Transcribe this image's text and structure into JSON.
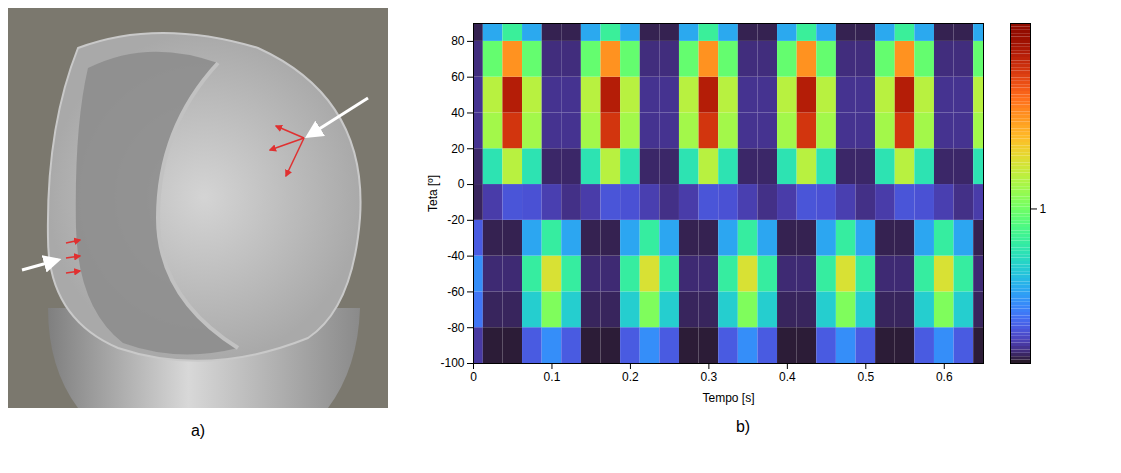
{
  "photo": {
    "label": "a)"
  },
  "chart_data": {
    "type": "heatmap",
    "panel_label": "b)",
    "x_label": "Tempo [s]",
    "y_label": "Teta [º]",
    "x": [
      0,
      0.025,
      0.05,
      0.075,
      0.1,
      0.125,
      0.15,
      0.175,
      0.2,
      0.225,
      0.25,
      0.275,
      0.3,
      0.325,
      0.35,
      0.375,
      0.4,
      0.425,
      0.45,
      0.475,
      0.5,
      0.525,
      0.55,
      0.575,
      0.6,
      0.625,
      0.65
    ],
    "y": [
      -90,
      -70,
      -50,
      -30,
      -10,
      10,
      30,
      50,
      70,
      90
    ],
    "values": [
      [
        0.12,
        0.31,
        0.39,
        0.23,
        0.05,
        0.06,
        0.1,
        0.1,
        0.08,
        0.04
      ],
      [
        0.02,
        0.05,
        0.07,
        0.04,
        0.13,
        0.72,
        1.14,
        1.2,
        0.96,
        0.48
      ],
      [
        0.02,
        0.05,
        0.07,
        0.04,
        0.21,
        1.2,
        1.9,
        2.0,
        1.6,
        0.8
      ],
      [
        0.23,
        0.62,
        0.78,
        0.47,
        0.2,
        0.72,
        1.14,
        1.2,
        0.96,
        0.48
      ],
      [
        0.39,
        1.04,
        1.3,
        0.78,
        0.14,
        0.06,
        0.1,
        0.1,
        0.08,
        0.04
      ],
      [
        0.23,
        0.62,
        0.78,
        0.47,
        0.09,
        0.06,
        0.1,
        0.1,
        0.08,
        0.04
      ],
      [
        0.02,
        0.05,
        0.07,
        0.04,
        0.13,
        0.72,
        1.14,
        1.2,
        0.96,
        0.48
      ],
      [
        0.02,
        0.05,
        0.07,
        0.04,
        0.21,
        1.2,
        1.9,
        2.0,
        1.6,
        0.8
      ],
      [
        0.23,
        0.62,
        0.78,
        0.47,
        0.2,
        0.72,
        1.14,
        1.2,
        0.96,
        0.48
      ],
      [
        0.39,
        1.04,
        1.3,
        0.78,
        0.14,
        0.06,
        0.1,
        0.1,
        0.08,
        0.04
      ],
      [
        0.23,
        0.62,
        0.78,
        0.47,
        0.09,
        0.06,
        0.1,
        0.1,
        0.08,
        0.04
      ],
      [
        0.02,
        0.05,
        0.07,
        0.04,
        0.13,
        0.72,
        1.14,
        1.2,
        0.96,
        0.48
      ],
      [
        0.02,
        0.05,
        0.07,
        0.04,
        0.21,
        1.2,
        1.9,
        2.0,
        1.6,
        0.8
      ],
      [
        0.23,
        0.62,
        0.78,
        0.47,
        0.2,
        0.72,
        1.14,
        1.2,
        0.96,
        0.48
      ],
      [
        0.39,
        1.04,
        1.3,
        0.78,
        0.14,
        0.06,
        0.1,
        0.1,
        0.08,
        0.04
      ],
      [
        0.23,
        0.62,
        0.78,
        0.47,
        0.09,
        0.06,
        0.1,
        0.1,
        0.08,
        0.04
      ],
      [
        0.02,
        0.05,
        0.07,
        0.04,
        0.13,
        0.72,
        1.14,
        1.2,
        0.96,
        0.48
      ],
      [
        0.02,
        0.05,
        0.07,
        0.04,
        0.21,
        1.2,
        1.9,
        2.0,
        1.6,
        0.8
      ],
      [
        0.23,
        0.62,
        0.78,
        0.47,
        0.2,
        0.72,
        1.14,
        1.2,
        0.96,
        0.48
      ],
      [
        0.39,
        1.04,
        1.3,
        0.78,
        0.14,
        0.06,
        0.1,
        0.1,
        0.08,
        0.04
      ],
      [
        0.23,
        0.62,
        0.78,
        0.47,
        0.09,
        0.06,
        0.1,
        0.1,
        0.08,
        0.04
      ],
      [
        0.02,
        0.05,
        0.07,
        0.04,
        0.13,
        0.72,
        1.14,
        1.2,
        0.96,
        0.48
      ],
      [
        0.02,
        0.05,
        0.07,
        0.04,
        0.21,
        1.2,
        1.9,
        2.0,
        1.6,
        0.8
      ],
      [
        0.23,
        0.62,
        0.78,
        0.47,
        0.2,
        0.72,
        1.14,
        1.2,
        0.96,
        0.48
      ],
      [
        0.39,
        1.04,
        1.3,
        0.78,
        0.14,
        0.06,
        0.1,
        0.1,
        0.08,
        0.04
      ],
      [
        0.23,
        0.62,
        0.78,
        0.47,
        0.09,
        0.06,
        0.1,
        0.1,
        0.08,
        0.04
      ],
      [
        0.02,
        0.05,
        0.07,
        0.04,
        0.13,
        0.72,
        1.14,
        1.2,
        0.96,
        0.48
      ]
    ],
    "xlim": [
      0,
      0.65
    ],
    "xticks": [
      0,
      0.1,
      0.2,
      0.3,
      0.4,
      0.5,
      0.6
    ],
    "ylim": [
      -100,
      90
    ],
    "yticks": [
      -100,
      -80,
      -60,
      -40,
      -20,
      0,
      20,
      40,
      60,
      80
    ],
    "colorbar": {
      "range": [
        0,
        2.2
      ],
      "ticks": [
        1
      ]
    }
  }
}
